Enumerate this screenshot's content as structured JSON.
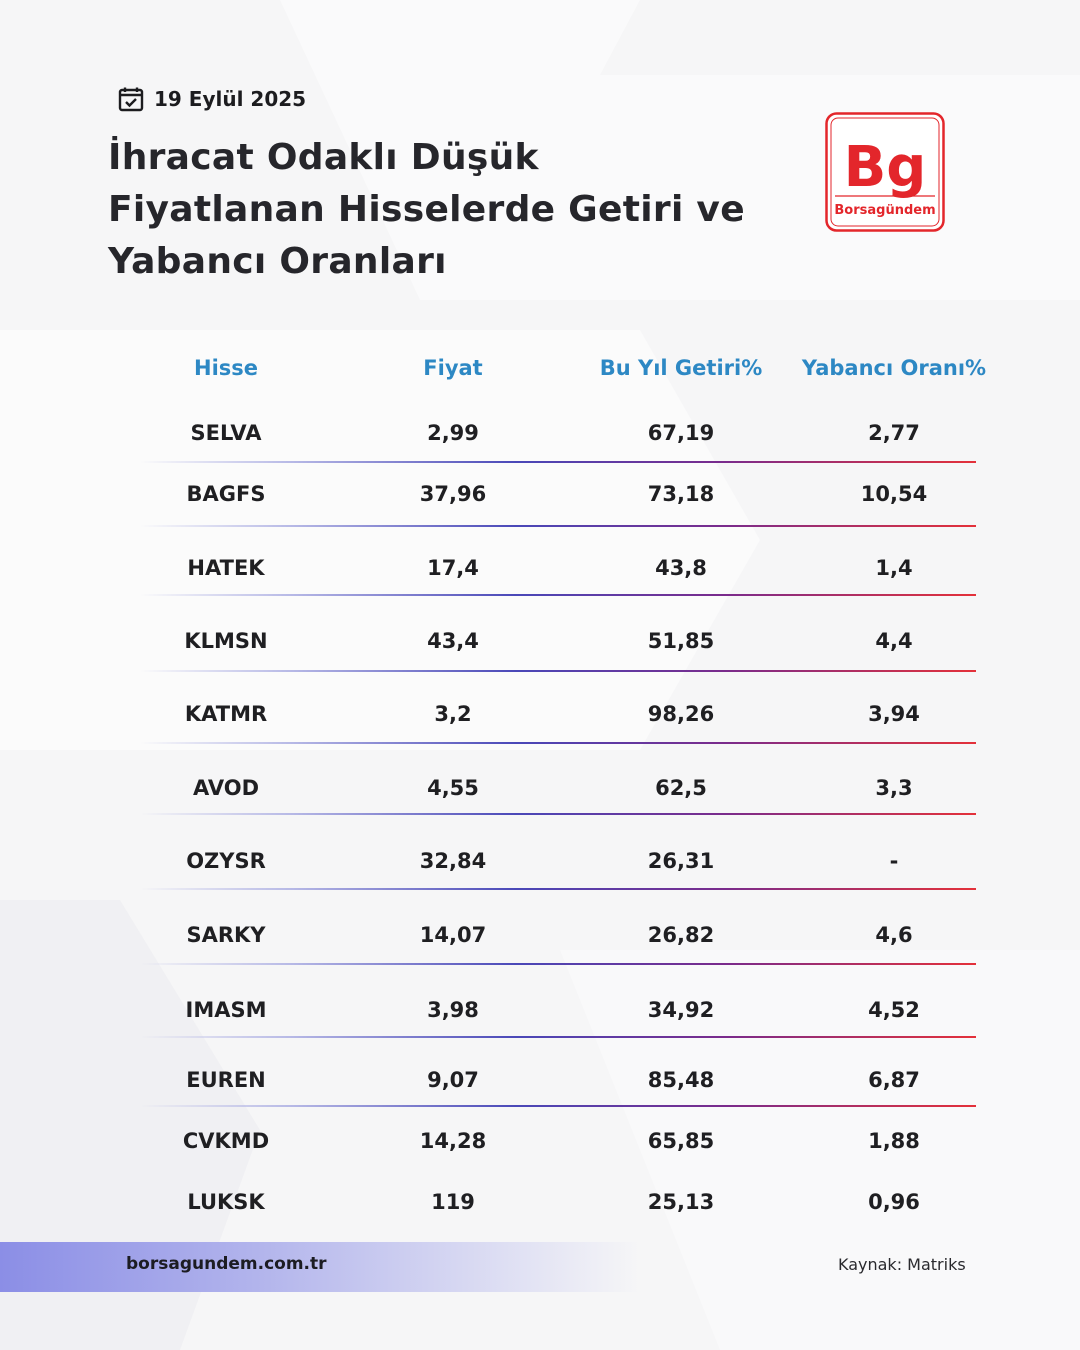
{
  "date": "19 Eylül 2025",
  "title": "İhracat Odaklı Düşük Fiyatlanan Hisselerde Getiri ve Yabancı Oranları",
  "logo": {
    "mark": "Bg",
    "text": "Borsagündem",
    "color": "#e3262b"
  },
  "table": {
    "headers": [
      "Hisse",
      "Fiyat",
      "Bu Yıl Getiri%",
      "Yabancı Oranı%"
    ],
    "rows": [
      [
        "SELVA",
        "2,99",
        "67,19",
        "2,77"
      ],
      [
        "BAGFS",
        "37,96",
        "73,18",
        "10,54"
      ],
      [
        "HATEK",
        "17,4",
        "43,8",
        "1,4"
      ],
      [
        "KLMSN",
        "43,4",
        "51,85",
        "4,4"
      ],
      [
        "KATMR",
        "3,2",
        "98,26",
        "3,94"
      ],
      [
        "AVOD",
        "4,55",
        "62,5",
        "3,3"
      ],
      [
        "OZYSR",
        "32,84",
        "26,31",
        "-"
      ],
      [
        "SARKY",
        "14,07",
        "26,82",
        "4,6"
      ],
      [
        "IMASM",
        "3,98",
        "34,92",
        "4,52"
      ],
      [
        "EUREN",
        "9,07",
        "85,48",
        "6,87"
      ],
      [
        "CVKMD",
        "14,28",
        "65,85",
        "1,88"
      ],
      [
        "LUKSK",
        "119",
        "25,13",
        "0,96"
      ]
    ]
  },
  "footer": {
    "site": "borsagundem.com.tr",
    "source": "Kaynak:  Matriks"
  },
  "colors": {
    "header_blue": "#2d88c4",
    "brand_red": "#e3262b"
  }
}
